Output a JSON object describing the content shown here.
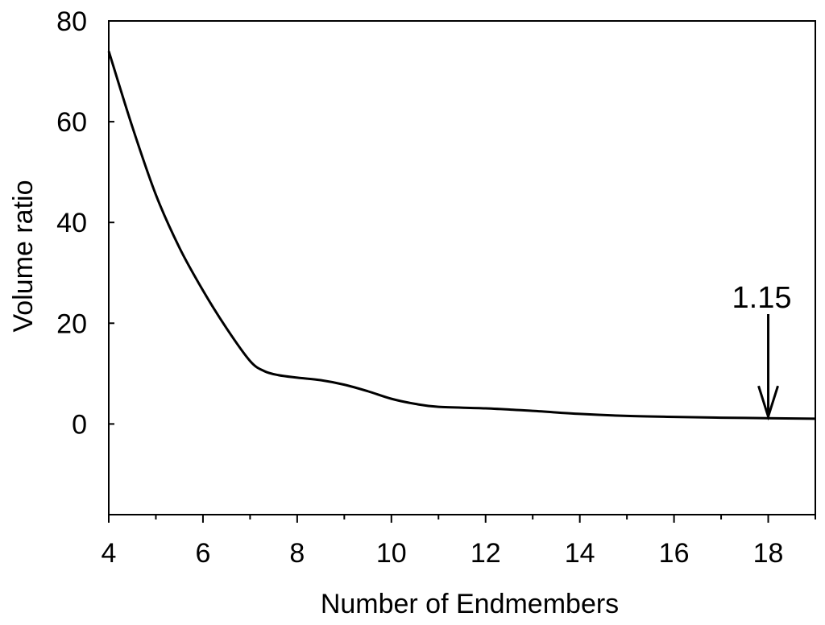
{
  "chart_data": {
    "type": "line",
    "title": "",
    "xlabel": "Number of Endmembers",
    "ylabel": "Volume ratio",
    "xlim": [
      4,
      19
    ],
    "ylim": [
      -18,
      80
    ],
    "x_ticks": [
      4,
      6,
      8,
      10,
      12,
      14,
      16,
      18
    ],
    "x_minor_ticks": [
      5,
      7,
      9,
      11,
      13,
      15,
      17,
      19
    ],
    "y_ticks": [
      0,
      20,
      40,
      60,
      80
    ],
    "grid": false,
    "legend": "none",
    "series": [
      {
        "color": "#000000",
        "x": [
          4,
          4.5,
          5,
          5.5,
          6,
          6.5,
          7,
          7.3,
          7.6,
          8,
          8.5,
          9,
          9.5,
          10,
          10.5,
          11,
          12,
          13,
          14,
          15,
          16,
          17,
          18,
          19
        ],
        "y": [
          74,
          59,
          45.5,
          35,
          26.5,
          19,
          12.5,
          10.5,
          9.7,
          9.2,
          8.7,
          7.8,
          6.5,
          5,
          4,
          3.4,
          3.1,
          2.6,
          2,
          1.6,
          1.4,
          1.25,
          1.15,
          1.05
        ]
      }
    ],
    "annotations": [
      {
        "text": "1.15",
        "x": 18,
        "y": 1.15,
        "arrow": "down"
      }
    ]
  }
}
